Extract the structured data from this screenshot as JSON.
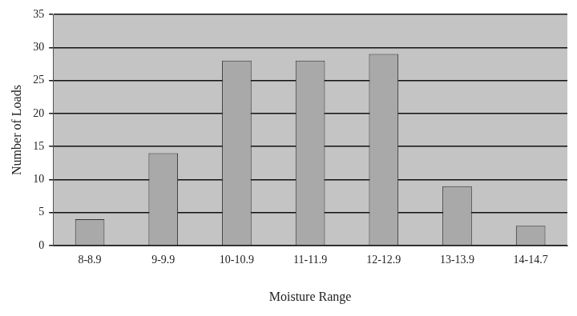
{
  "chart_data": {
    "type": "bar",
    "x_label": "Moisture Range",
    "y_label": "Number of Loads",
    "categories": [
      "8-8.9",
      "9-9.9",
      "10-10.9",
      "11-11.9",
      "12-12.9",
      "13-13.9",
      "14-14.7"
    ],
    "values": [
      4,
      14,
      28,
      28,
      29,
      9,
      3
    ],
    "color": "#a9a9a9",
    "ylim": [
      0,
      35
    ],
    "yticks": [
      0,
      5,
      10,
      15,
      20,
      25,
      30,
      35
    ],
    "grid": true
  }
}
